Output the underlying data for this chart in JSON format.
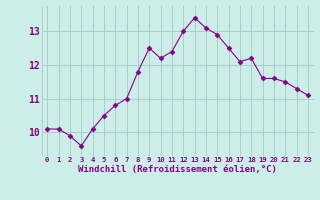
{
  "x": [
    0,
    1,
    2,
    3,
    4,
    5,
    6,
    7,
    8,
    9,
    10,
    11,
    12,
    13,
    14,
    15,
    16,
    17,
    18,
    19,
    20,
    21,
    22,
    23
  ],
  "y": [
    10.1,
    10.1,
    9.9,
    9.6,
    10.1,
    10.5,
    10.8,
    11.0,
    11.8,
    12.5,
    12.2,
    12.4,
    13.0,
    13.4,
    13.1,
    12.9,
    12.5,
    12.1,
    12.2,
    11.6,
    11.6,
    11.5,
    11.3,
    11.1
  ],
  "line_color": "#880088",
  "marker": "D",
  "marker_size": 2.5,
  "bg_color": "#cceee8",
  "grid_color": "#aacccc",
  "xlabel": "Windchill (Refroidissement éolien,°C)",
  "xlabel_color": "#880088",
  "tick_color": "#880088",
  "ylim": [
    9.3,
    13.75
  ],
  "xlim": [
    -0.5,
    23.5
  ],
  "yticks": [
    10,
    11,
    12,
    13
  ],
  "ytick_labels": [
    "10",
    "11",
    "12",
    "13"
  ],
  "xtick_labels": [
    "0",
    "1",
    "2",
    "3",
    "4",
    "5",
    "6",
    "7",
    "8",
    "9",
    "10",
    "11",
    "12",
    "13",
    "14",
    "15",
    "16",
    "17",
    "18",
    "19",
    "20",
    "21",
    "22",
    "23"
  ]
}
